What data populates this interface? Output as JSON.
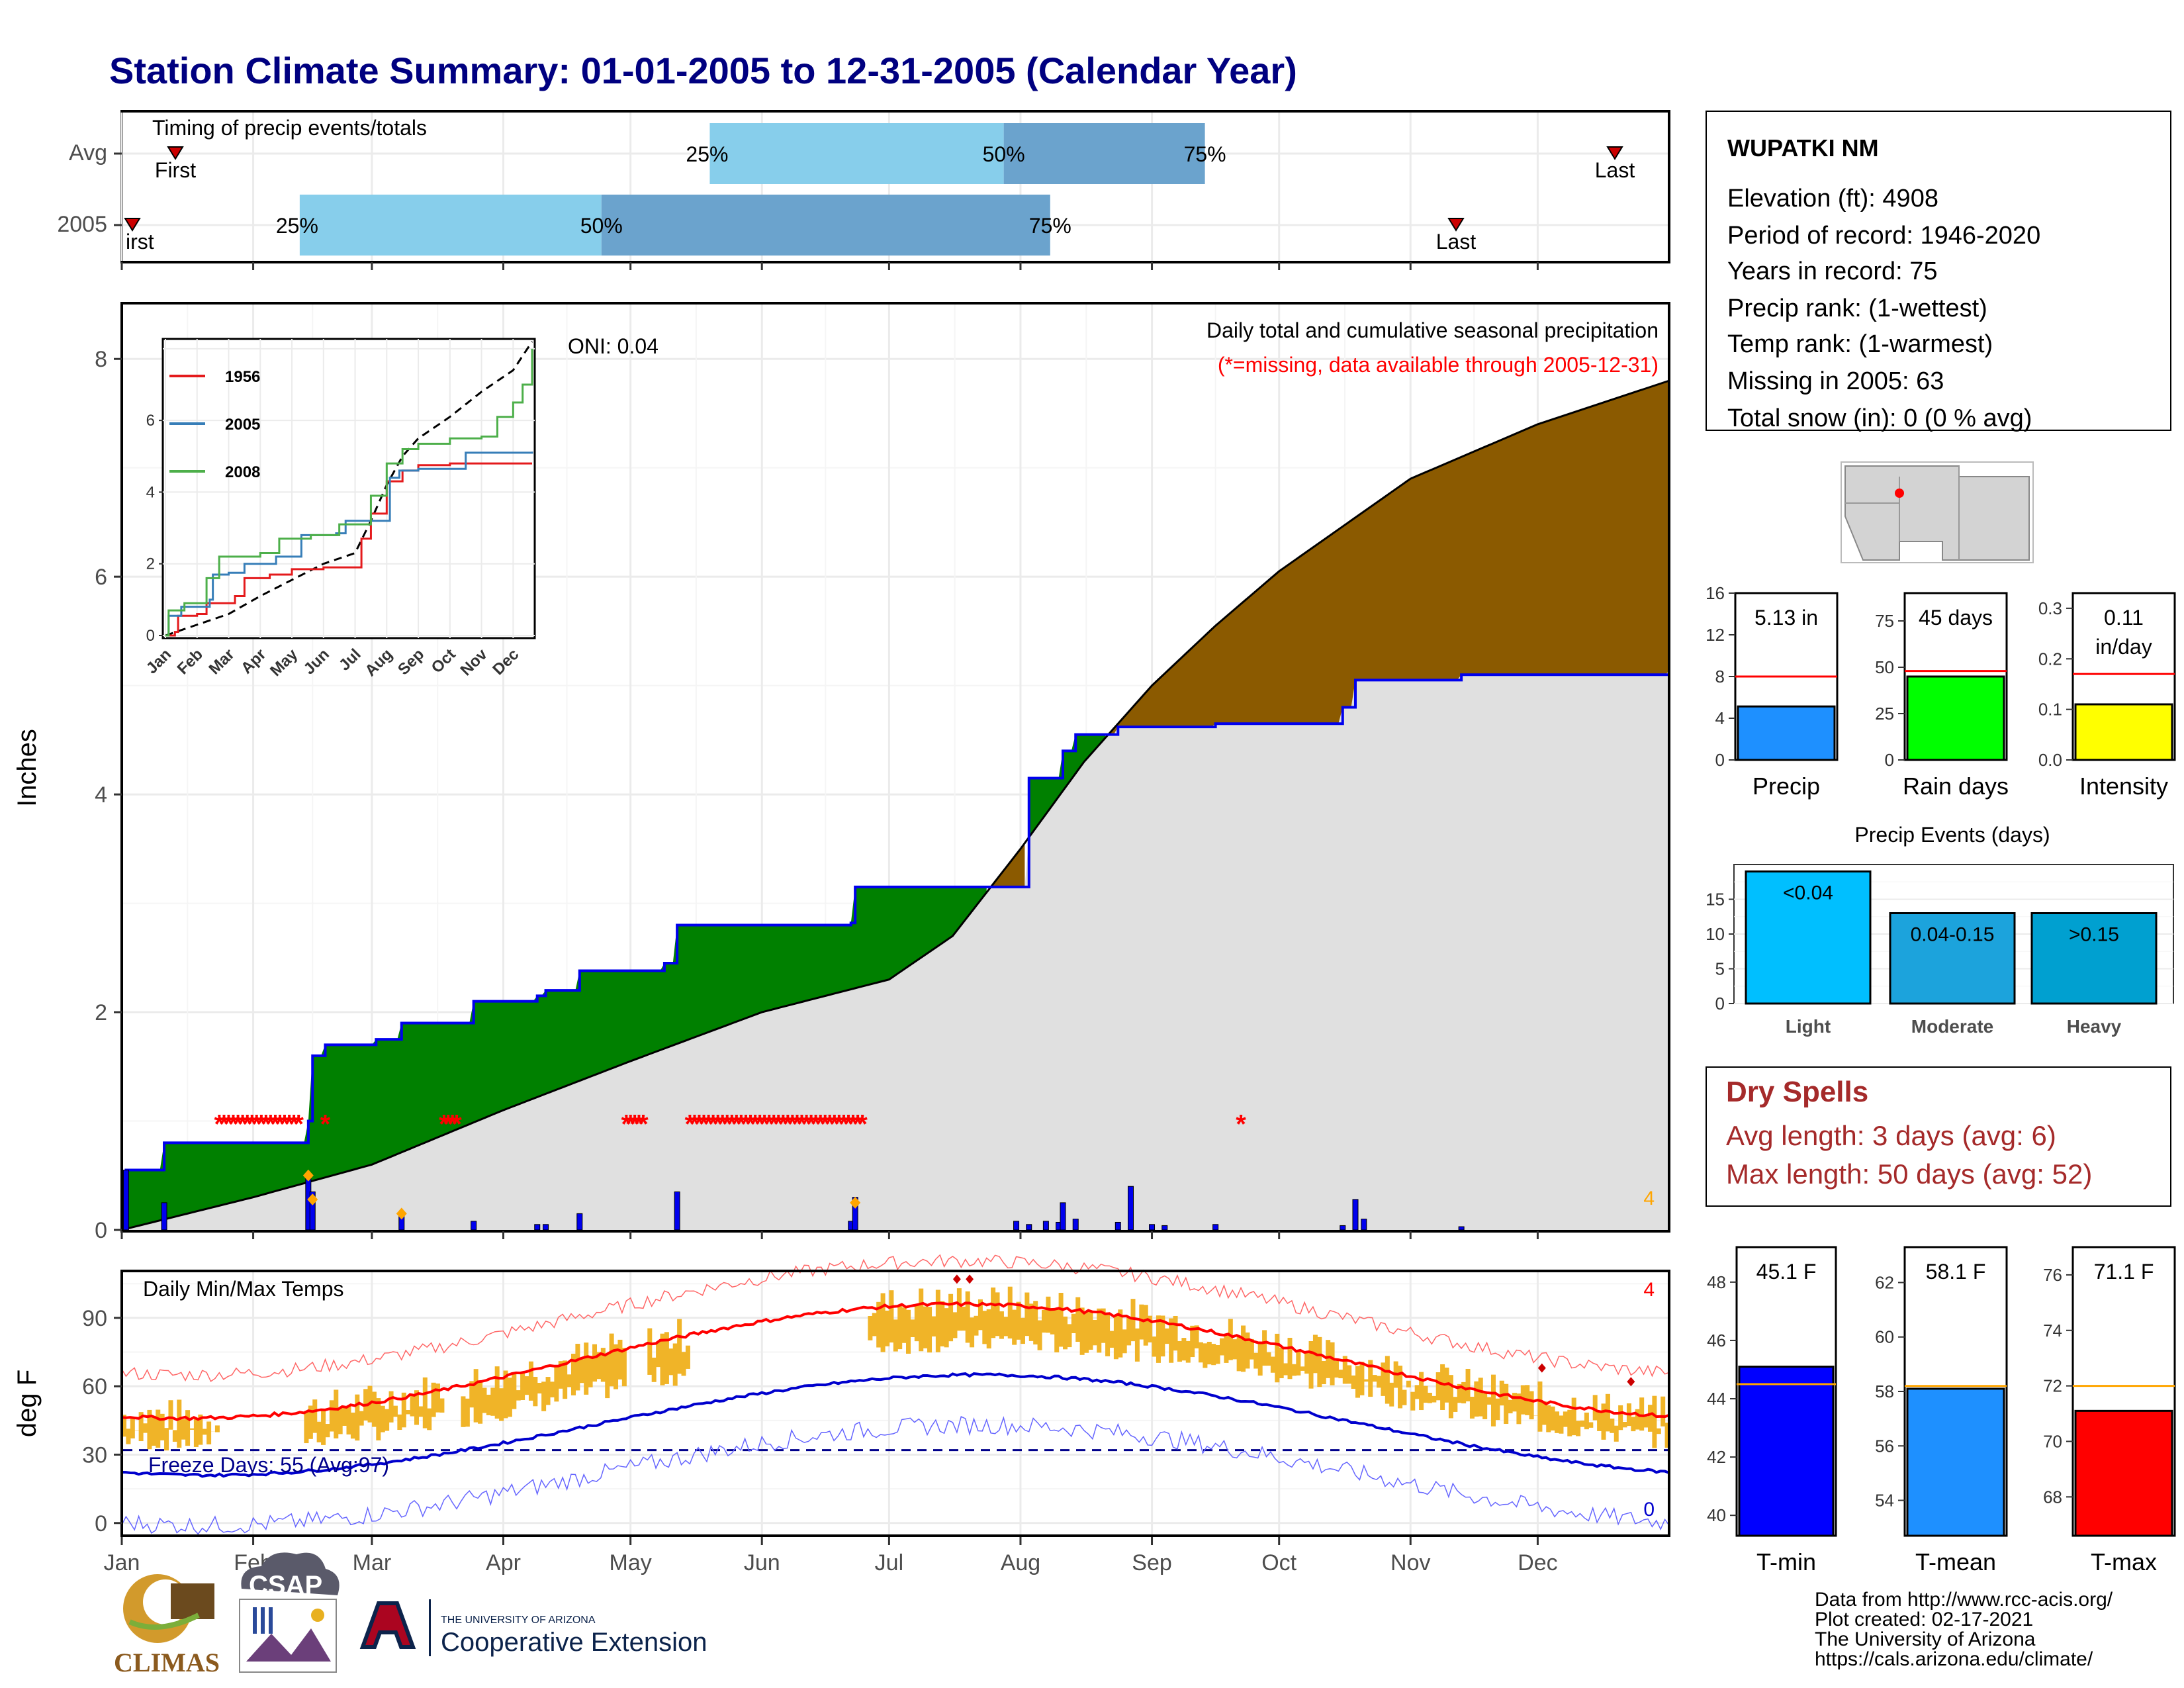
{
  "title": "Station Climate Summary: 01-01-2005 to 12-31-2005 (Calendar Year)",
  "station": {
    "name": "WUPATKI NM",
    "lines": [
      "Elevation (ft): 4908",
      "Period of record: 1946-2020",
      "Years in record: 75",
      "Precip rank:  (1-wettest)",
      "Temp rank:  (1-warmest)",
      "Missing in 2005: 63",
      "Total snow (in): 0 (0 % avg)"
    ]
  },
  "colors": {
    "title": "#000080",
    "light_blue": "#87CEEB",
    "steel_blue": "#6BA3CD",
    "green": "#008000",
    "brown": "#8B5A00",
    "grey_fill": "#E0E0E0",
    "blue_line": "#0000EE",
    "red": "#FF0000",
    "orange": "#FFA500",
    "temp_bar": "#F0B428",
    "dry_spell": "#A52A2A"
  },
  "timing": {
    "title": "Timing of precip events/totals",
    "rows": [
      {
        "label": "Avg",
        "first": 0.035,
        "p25": 0.38,
        "p50": 0.57,
        "p75": 0.7,
        "last": 0.965
      },
      {
        "label": "2005",
        "first": 0.0,
        "p25": 0.115,
        "p50": 0.31,
        "p75": 0.6,
        "last": 0.86
      }
    ],
    "labels": {
      "first": "First",
      "first_cut": "irst",
      "last": "Last",
      "p25": "25%",
      "p50": "50%",
      "p75": "75%"
    }
  },
  "main": {
    "ylabel": "Inches",
    "annot_title": "Daily total and cumulative seasonal precipitation",
    "annot_missing": "(*=missing, data available through 2005-12-31)",
    "oni": "ONI: 0.04",
    "count_label": "4",
    "yticks": [
      "0",
      "2",
      "4",
      "6",
      "8"
    ]
  },
  "inset": {
    "legend": [
      "1956",
      "2005",
      "2008"
    ],
    "yticks": [
      "0",
      "2",
      "4",
      "6"
    ],
    "months": [
      "Jan",
      "Feb",
      "Mar",
      "Apr",
      "May",
      "Jun",
      "Jul",
      "Aug",
      "Sep",
      "Oct",
      "Nov",
      "Dec"
    ]
  },
  "temp": {
    "title": "Daily Min/Max Temps",
    "ylabel": "deg F",
    "freeze": "Freeze Days: 55 (Avg:97)",
    "count_max": "4",
    "count_min": "0",
    "yticks": [
      "0",
      "30",
      "60",
      "90"
    ]
  },
  "months": [
    "Jan",
    "Feb",
    "Mar",
    "Apr",
    "May",
    "Jun",
    "Jul",
    "Aug",
    "Sep",
    "Oct",
    "Nov",
    "Dec"
  ],
  "precip_bars": {
    "items": [
      {
        "label": "Precip",
        "value_text": "5.13 in",
        "yticks": [
          "0",
          "4",
          "8",
          "12",
          "16"
        ]
      },
      {
        "label": "Rain days",
        "value_text": "45 days",
        "yticks": [
          "0",
          "25",
          "50",
          "75"
        ]
      },
      {
        "label": "Intensity",
        "value_text": "0.11\nin/day",
        "value_text_1": "0.11",
        "value_text_2": "in/day",
        "yticks": [
          "0.0",
          "0.1",
          "0.2",
          "0.3"
        ]
      }
    ]
  },
  "events": {
    "title": "Precip Events (days)",
    "yticks": [
      "0",
      "5",
      "10",
      "15"
    ],
    "bars": [
      {
        "cat": "Light",
        "label": "<0.04",
        "value": 19
      },
      {
        "cat": "Moderate",
        "label": "0.04-0.15",
        "value": 13
      },
      {
        "cat": "Heavy",
        "label": ">0.15",
        "value": 13
      }
    ]
  },
  "dry": {
    "title": "Dry Spells",
    "avg": "Avg length: 3 days (avg: 6)",
    "max": "Max length: 50 days (avg: 52)"
  },
  "temp_bars": [
    {
      "label": "T-min",
      "value_text": "45.1 F",
      "yticks": [
        "40",
        "42",
        "44",
        "46",
        "48"
      ]
    },
    {
      "label": "T-mean",
      "value_text": "58.1 F",
      "yticks": [
        "54",
        "56",
        "58",
        "60",
        "62"
      ]
    },
    {
      "label": "T-max",
      "value_text": "71.1 F",
      "yticks": [
        "68",
        "70",
        "72",
        "74",
        "76"
      ]
    }
  ],
  "footer": {
    "lines": [
      "Data from http://www.rcc-acis.org/",
      "Plot created: 02-17-2021",
      "The University of Arizona",
      "https://cals.arizona.edu/climate/"
    ],
    "climas": "CLIMAS",
    "csap": "CSAP",
    "uofa_small": "THE UNIVERSITY OF ARIZONA",
    "coop": "Cooperative Extension"
  },
  "chart_data": [
    {
      "type": "bar",
      "title": "Timing of precip events/totals",
      "categories": [
        "Avg",
        "2005"
      ],
      "series": [
        {
          "name": "First",
          "values": [
            "Jan 13",
            "Jan 1"
          ]
        },
        {
          "name": "25%",
          "values": [
            "May 19",
            "Feb 12"
          ]
        },
        {
          "name": "50%",
          "values": [
            "Jul 29",
            "Apr 24"
          ]
        },
        {
          "name": "75%",
          "values": [
            "Sep 13",
            "Aug 8"
          ]
        },
        {
          "name": "Last",
          "values": [
            "Dec 19",
            "Nov 10"
          ]
        }
      ]
    },
    {
      "type": "area",
      "title": "Daily total and cumulative seasonal precipitation",
      "ylabel": "Inches",
      "ylim": [
        0,
        8.5
      ],
      "x": [
        "Jan 1",
        "Feb 1",
        "Mar 1",
        "Apr 1",
        "May 1",
        "Jun 1",
        "Jul 1",
        "Aug 1",
        "Sep 1",
        "Oct 1",
        "Nov 1",
        "Dec 1",
        "Dec 31"
      ],
      "series": [
        {
          "name": "2005",
          "values": [
            0.0,
            0.8,
            1.75,
            2.1,
            2.8,
            2.8,
            3.15,
            4.4,
            4.65,
            4.65,
            5.1,
            5.13,
            5.13
          ]
        },
        {
          "name": "Avg",
          "values": [
            0.0,
            0.3,
            0.6,
            1.1,
            1.55,
            2.0,
            2.3,
            3.5,
            5.0,
            6.05,
            6.9,
            7.4,
            7.8
          ]
        }
      ]
    },
    {
      "type": "line",
      "title": "",
      "x": [
        "Jan",
        "Feb",
        "Mar",
        "Apr",
        "May",
        "Jun",
        "Jul",
        "Aug",
        "Sep",
        "Oct",
        "Nov",
        "Dec"
      ],
      "ylim": [
        0,
        8.2
      ],
      "series": [
        {
          "name": "1956",
          "values": [
            0.2,
            0.9,
            1.3,
            1.7,
            1.8,
            1.9,
            3.0,
            4.5,
            4.6,
            4.7,
            4.8,
            4.8
          ]
        },
        {
          "name": "2005",
          "values": [
            0.6,
            1.3,
            2.0,
            2.4,
            2.6,
            2.8,
            3.2,
            4.7,
            5.0,
            5.1,
            5.1,
            5.1
          ]
        },
        {
          "name": "2008",
          "values": [
            0.5,
            1.6,
            2.1,
            2.4,
            2.8,
            3.1,
            3.6,
            5.2,
            5.4,
            5.5,
            6.3,
            8.0
          ]
        }
      ]
    },
    {
      "type": "line",
      "title": "Daily Min/Max Temps",
      "ylabel": "deg F",
      "ylim": [
        -5,
        110
      ],
      "x": [
        "Jan",
        "Feb",
        "Mar",
        "Apr",
        "May",
        "Jun",
        "Jul",
        "Aug",
        "Sep",
        "Oct",
        "Nov",
        "Dec"
      ],
      "series": [
        {
          "name": "Avg max",
          "values": [
            46,
            52,
            58,
            66,
            76,
            88,
            96,
            92,
            86,
            74,
            58,
            46
          ]
        },
        {
          "name": "Avg min",
          "values": [
            21,
            25,
            30,
            36,
            45,
            56,
            65,
            63,
            55,
            42,
            30,
            22
          ]
        },
        {
          "name": "Record max",
          "values": [
            64,
            72,
            80,
            90,
            100,
            108,
            110,
            108,
            104,
            94,
            80,
            68
          ]
        },
        {
          "name": "Record min",
          "values": [
            -3,
            3,
            10,
            18,
            26,
            36,
            48,
            46,
            34,
            20,
            6,
            -2
          ]
        }
      ]
    },
    {
      "type": "bar",
      "categories": [
        "Precip",
        "Rain days",
        "Intensity"
      ],
      "values": [
        5.13,
        45,
        0.11
      ],
      "averages": [
        8,
        48,
        0.17
      ]
    },
    {
      "type": "bar",
      "title": "Precip Events (days)",
      "categories": [
        "Light",
        "Moderate",
        "Heavy"
      ],
      "values": [
        19,
        13,
        13
      ]
    },
    {
      "type": "bar",
      "categories": [
        "T-min",
        "T-mean",
        "T-max"
      ],
      "values": [
        45.1,
        58.1,
        71.1
      ],
      "averages": [
        44.5,
        58.2,
        72.0
      ]
    }
  ]
}
